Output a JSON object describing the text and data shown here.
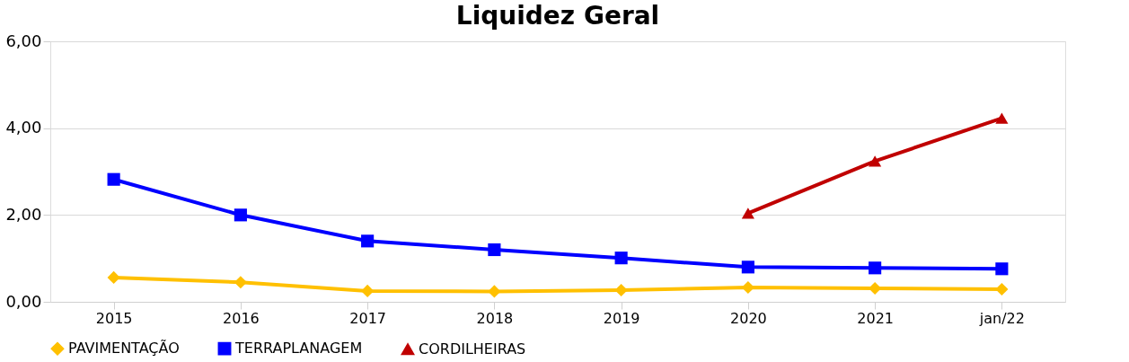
{
  "chart_data": {
    "type": "line",
    "title": "Liquidez Geral",
    "categories": [
      "2015",
      "2016",
      "2017",
      "2018",
      "2019",
      "2020",
      "2021",
      "jan/22"
    ],
    "series": [
      {
        "name": "PAVIMENTAÇÃO",
        "color": "#ffc000",
        "marker": "diamond",
        "values": [
          0.56,
          0.45,
          0.25,
          0.24,
          0.27,
          0.33,
          0.31,
          0.29
        ]
      },
      {
        "name": "TERRAPLANAGEM",
        "color": "#0000ff",
        "marker": "square",
        "values": [
          2.82,
          2.0,
          1.4,
          1.2,
          1.01,
          0.8,
          0.78,
          0.76
        ]
      },
      {
        "name": "CORDILHEIRAS",
        "color": "#c00000",
        "marker": "triangle",
        "values": [
          null,
          null,
          null,
          null,
          null,
          2.04,
          3.24,
          4.23
        ]
      }
    ],
    "ylim": [
      0,
      6
    ],
    "yticks": [
      {
        "value": 0,
        "label": "0,00"
      },
      {
        "value": 2,
        "label": "2,00"
      },
      {
        "value": 4,
        "label": "4,00"
      },
      {
        "value": 6,
        "label": "6,00"
      }
    ],
    "grid": "y",
    "legend": "bottom",
    "line_style": "solid"
  }
}
